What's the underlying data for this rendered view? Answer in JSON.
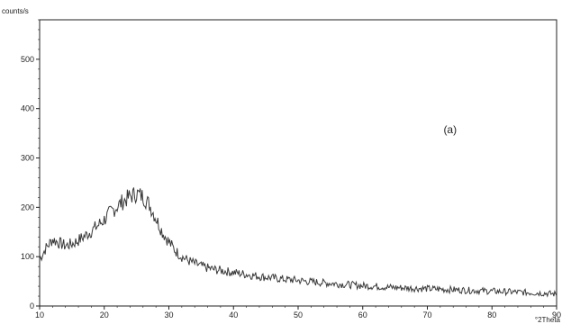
{
  "chart_data": {
    "type": "line",
    "title": "",
    "xlabel": "°2Theta",
    "ylabel": "counts/s",
    "xlim": [
      10,
      90
    ],
    "ylim": [
      0,
      580
    ],
    "x_ticks": [
      10,
      20,
      30,
      40,
      50,
      60,
      70,
      80,
      90
    ],
    "y_ticks": [
      0,
      100,
      200,
      300,
      400,
      500
    ],
    "grid": false,
    "legend": "none",
    "annotation": {
      "text": "(a)",
      "x": 72.5,
      "y": 350
    },
    "colors": {
      "line": "#3a3a3a",
      "axis": "#222222"
    },
    "series": [
      {
        "x": [
          10,
          11,
          12,
          13,
          14,
          15,
          16,
          17,
          18,
          19,
          20,
          21,
          22,
          23,
          24,
          25,
          26,
          27,
          28,
          29,
          30,
          31,
          32,
          33,
          34,
          35,
          36,
          37,
          38,
          39,
          40,
          42,
          44,
          46,
          48,
          50,
          52,
          54,
          56,
          58,
          60,
          62,
          64,
          66,
          68,
          70,
          72,
          74,
          76,
          78,
          80,
          82,
          84,
          86,
          88,
          90
        ],
        "values": [
          95,
          118,
          135,
          128,
          122,
          126,
          133,
          142,
          152,
          163,
          175,
          190,
          202,
          213,
          222,
          228,
          222,
          205,
          178,
          150,
          130,
          112,
          100,
          92,
          86,
          81,
          77,
          74,
          72,
          70,
          68,
          64,
          60,
          57,
          54,
          52,
          49,
          47,
          45,
          43,
          41,
          40,
          38,
          37,
          36,
          35,
          34,
          33,
          32,
          31,
          30,
          29,
          28,
          27,
          26,
          24
        ]
      }
    ]
  }
}
